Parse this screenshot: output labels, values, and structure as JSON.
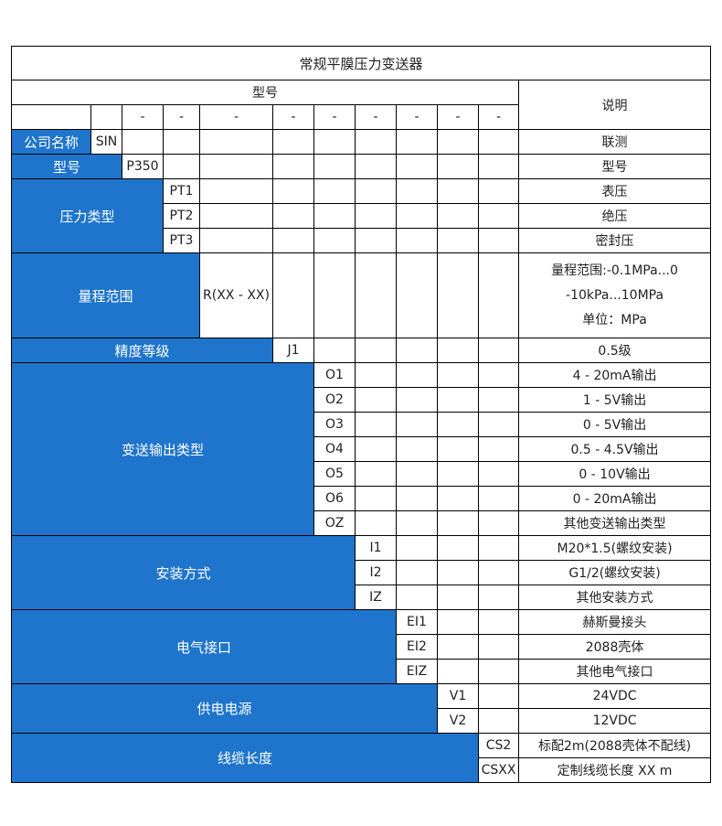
{
  "title": "常规平膜压力变送器",
  "header": {
    "model": "型号",
    "description": "说明",
    "dashes": [
      "-",
      "-",
      "-",
      "-",
      "-",
      "-",
      "-",
      "-",
      "-"
    ]
  },
  "colors": {
    "label_bg": "#1f75cc",
    "label_text": "#ffffff",
    "border": "#000000"
  },
  "groups": [
    {
      "label": "公司名称",
      "options": [
        {
          "code": "SIN",
          "desc": "联测"
        }
      ]
    },
    {
      "label": "型号",
      "options": [
        {
          "code": "P350",
          "desc": "型号"
        }
      ]
    },
    {
      "label": "压力类型",
      "options": [
        {
          "code": "PT1",
          "desc": "表压"
        },
        {
          "code": "PT2",
          "desc": "绝压"
        },
        {
          "code": "PT3",
          "desc": "密封压"
        }
      ]
    },
    {
      "label": "量程范围",
      "options": [
        {
          "code": "R(XX - XX)",
          "desc": [
            "量程范围:-0.1MPa...0",
            "-10kPa...10MPa",
            "单位：MPa"
          ]
        }
      ]
    },
    {
      "label": "精度等级",
      "options": [
        {
          "code": "J1",
          "desc": "0.5级"
        }
      ]
    },
    {
      "label": "变送输出类型",
      "options": [
        {
          "code": "O1",
          "desc": "4 - 20mA输出"
        },
        {
          "code": "O2",
          "desc": "1 - 5V输出"
        },
        {
          "code": "O3",
          "desc": "0 - 5V输出"
        },
        {
          "code": "O4",
          "desc": "0.5 - 4.5V输出"
        },
        {
          "code": "O5",
          "desc": "0 - 10V输出"
        },
        {
          "code": "O6",
          "desc": "0 - 20mA输出"
        },
        {
          "code": "OZ",
          "desc": "其他变送输出类型"
        }
      ]
    },
    {
      "label": "安装方式",
      "options": [
        {
          "code": "I1",
          "desc": "M20*1.5(螺纹安装)"
        },
        {
          "code": "I2",
          "desc": "G1/2(螺纹安装)"
        },
        {
          "code": "IZ",
          "desc": "其他安装方式"
        }
      ]
    },
    {
      "label": "电气接口",
      "options": [
        {
          "code": "EI1",
          "desc": "赫斯曼接头"
        },
        {
          "code": "EI2",
          "desc": "2088壳体"
        },
        {
          "code": "EIZ",
          "desc": "其他电气接口"
        }
      ]
    },
    {
      "label": "供电电源",
      "options": [
        {
          "code": "V1",
          "desc": "24VDC"
        },
        {
          "code": "V2",
          "desc": "12VDC"
        }
      ]
    },
    {
      "label": "线缆长度",
      "options": [
        {
          "code": "CS2",
          "desc": "标配2m(2088壳体不配线)"
        },
        {
          "code": "CSXX",
          "desc": "定制线缆长度 XX m"
        }
      ]
    }
  ]
}
